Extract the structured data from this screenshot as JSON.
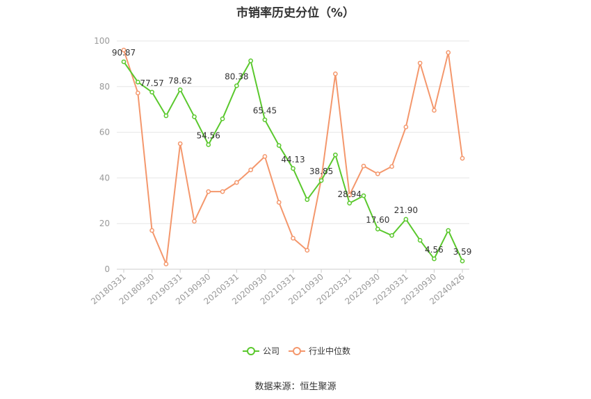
{
  "chart_data": {
    "type": "line",
    "title": "市销率历史分位（%）",
    "source": "数据来源：恒生聚源",
    "ylim": [
      0,
      100
    ],
    "yticks": [
      0,
      20,
      40,
      60,
      80,
      100
    ],
    "grid": true,
    "legend_position": "bottom",
    "x_tick_labels": [
      "20180331",
      "20180930",
      "20190331",
      "20190930",
      "20200331",
      "20200930",
      "20210331",
      "20210930",
      "20220331",
      "20220930",
      "20230331",
      "20230930",
      "20240426"
    ],
    "series": [
      {
        "name": "公司",
        "color": "#5ac82d",
        "values": [
          90.87,
          82.0,
          77.57,
          67.2,
          78.62,
          66.8,
          54.56,
          65.9,
          80.38,
          91.3,
          65.45,
          54.2,
          44.13,
          30.5,
          38.85,
          50.1,
          28.94,
          32.2,
          17.6,
          14.8,
          21.9,
          12.7,
          4.56,
          17.0,
          3.59
        ],
        "data_labels": {
          "0": "90.87",
          "2": "77.57",
          "4": "78.62",
          "6": "54.56",
          "8": "80.38",
          "10": "65.45",
          "12": "44.13",
          "14": "38.85",
          "16": "28.94",
          "18": "17.60",
          "20": "21.90",
          "22": "4.56",
          "24": "3.59"
        }
      },
      {
        "name": "行业中位数",
        "color": "#f4976c",
        "values": [
          96.0,
          77.2,
          17.0,
          2.3,
          55.0,
          21.0,
          34.0,
          34.0,
          38.0,
          43.5,
          49.4,
          29.3,
          13.6,
          8.3,
          39.5,
          85.6,
          32.5,
          45.2,
          41.8,
          45.0,
          62.3,
          90.3,
          69.6,
          94.9,
          48.6
        ]
      }
    ]
  }
}
